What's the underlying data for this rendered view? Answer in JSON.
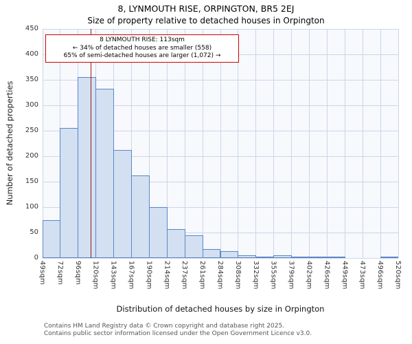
{
  "title": "8, LYNMOUTH RISE, ORPINGTON, BR5 2EJ",
  "subtitle": "Size of property relative to detached houses in Orpington",
  "annotation": {
    "line1": "8 LYNMOUTH RISE: 113sqm",
    "line2": "← 34% of detached houses are smaller (558)",
    "line3": "65% of semi-detached houses are larger (1,072) →"
  },
  "footer": {
    "line1": "Contains HM Land Registry data © Crown copyright and database right 2025.",
    "line2": "Contains public sector information licensed under the Open Government Licence v3.0."
  },
  "chart_data": {
    "type": "bar",
    "title": "Size of property relative to detached houses in Orpington",
    "xlabel": "Distribution of detached houses by size in Orpington",
    "ylabel": "Number of detached properties",
    "bin_edges_sqm": [
      49,
      72,
      96,
      120,
      143,
      167,
      190,
      214,
      237,
      261,
      284,
      308,
      332,
      355,
      379,
      402,
      426,
      449,
      473,
      496,
      520
    ],
    "tick_labels": [
      "49sqm",
      "72sqm",
      "96sqm",
      "120sqm",
      "143sqm",
      "167sqm",
      "190sqm",
      "214sqm",
      "237sqm",
      "261sqm",
      "284sqm",
      "308sqm",
      "332sqm",
      "355sqm",
      "379sqm",
      "402sqm",
      "426sqm",
      "449sqm",
      "473sqm",
      "496sqm",
      "520sqm"
    ],
    "values": [
      75,
      255,
      355,
      332,
      212,
      162,
      100,
      57,
      44,
      18,
      13,
      5,
      3,
      5,
      2,
      1,
      1,
      0,
      0,
      2
    ],
    "ylim": [
      0,
      450
    ],
    "ytick_step": 50,
    "grid": true,
    "legend": "none",
    "marker_value_sqm": 113,
    "colors": {
      "bar_fill": "#d2e0f2",
      "bar_border": "#5b87c5",
      "marker_line": "#a01212",
      "grid": "#ccd6e8",
      "plot_bg": "#f7f9fd",
      "annotation_border": "#cc0000"
    }
  }
}
